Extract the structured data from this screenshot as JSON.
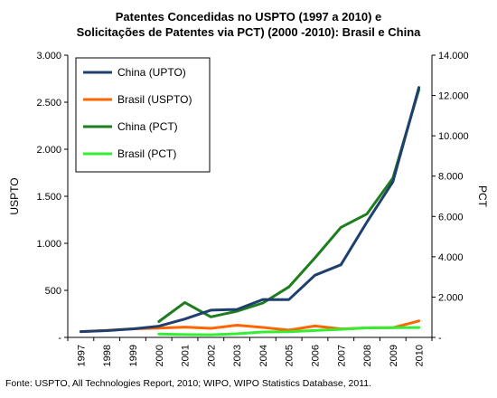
{
  "title": {
    "line1": "Patentes  Concedidas no USPTO (1997 a 2010) e",
    "line2": "Solicitações de Patentes via  PCT) (2000 -2010):  Brasil e China"
  },
  "source": "Fonte: USPTO, All Technologies Report, 2010; WIPO, WIPO Statistics Database, 2011.",
  "chart_data": {
    "type": "line",
    "title": "Patentes  Concedidas no USPTO (1997 a 2010) e Solicitações de Patentes via  PCT) (2000 -2010):  Brasil e China",
    "categories": [
      "1997",
      "1998",
      "1999",
      "2000",
      "2001",
      "2002",
      "2003",
      "2004",
      "2005",
      "2006",
      "2007",
      "2008",
      "2009",
      "2010"
    ],
    "y_left": {
      "label": "USPTO",
      "range": [
        0,
        3000
      ],
      "ticks": [
        0,
        500,
        1000,
        1500,
        2000,
        2500,
        3000
      ],
      "tick_labels": [
        "-",
        "500",
        "1.000",
        "1.500",
        "2.000",
        "2.500",
        "3.000"
      ]
    },
    "y_right": {
      "label": "PCT",
      "range": [
        0,
        14000
      ],
      "ticks": [
        0,
        2000,
        4000,
        6000,
        8000,
        10000,
        12000,
        14000
      ],
      "tick_labels": [
        "-",
        "2.000",
        "4.000",
        "6.000",
        "8.000",
        "10.000",
        "12.000",
        "14.000"
      ]
    },
    "grid": false,
    "legend_position": "top-left",
    "series": [
      {
        "name": "China (UPTO)",
        "axis": "left",
        "color": "#1f3f6e",
        "values": [
          62,
          72,
          90,
          119,
          195,
          289,
          297,
          403,
          402,
          661,
          772,
          1225,
          1655,
          2657
        ]
      },
      {
        "name": "Brasil (USPTO)",
        "axis": "left",
        "color": "#ff6600",
        "values": [
          62,
          74,
          91,
          98,
          110,
          96,
          130,
          106,
          77,
          121,
          90,
          101,
          103,
          175
        ]
      },
      {
        "name": "China (PCT)",
        "axis": "right",
        "color": "#1e7d1e",
        "values": [
          null,
          null,
          null,
          784,
          1731,
          1018,
          1295,
          1706,
          2503,
          3942,
          5455,
          6120,
          7900,
          12300
        ]
      },
      {
        "name": "Brasil  (PCT)",
        "axis": "right",
        "color": "#33ee33",
        "values": [
          null,
          null,
          null,
          170,
          140,
          130,
          180,
          270,
          280,
          340,
          400,
          470,
          480,
          490
        ]
      }
    ]
  }
}
